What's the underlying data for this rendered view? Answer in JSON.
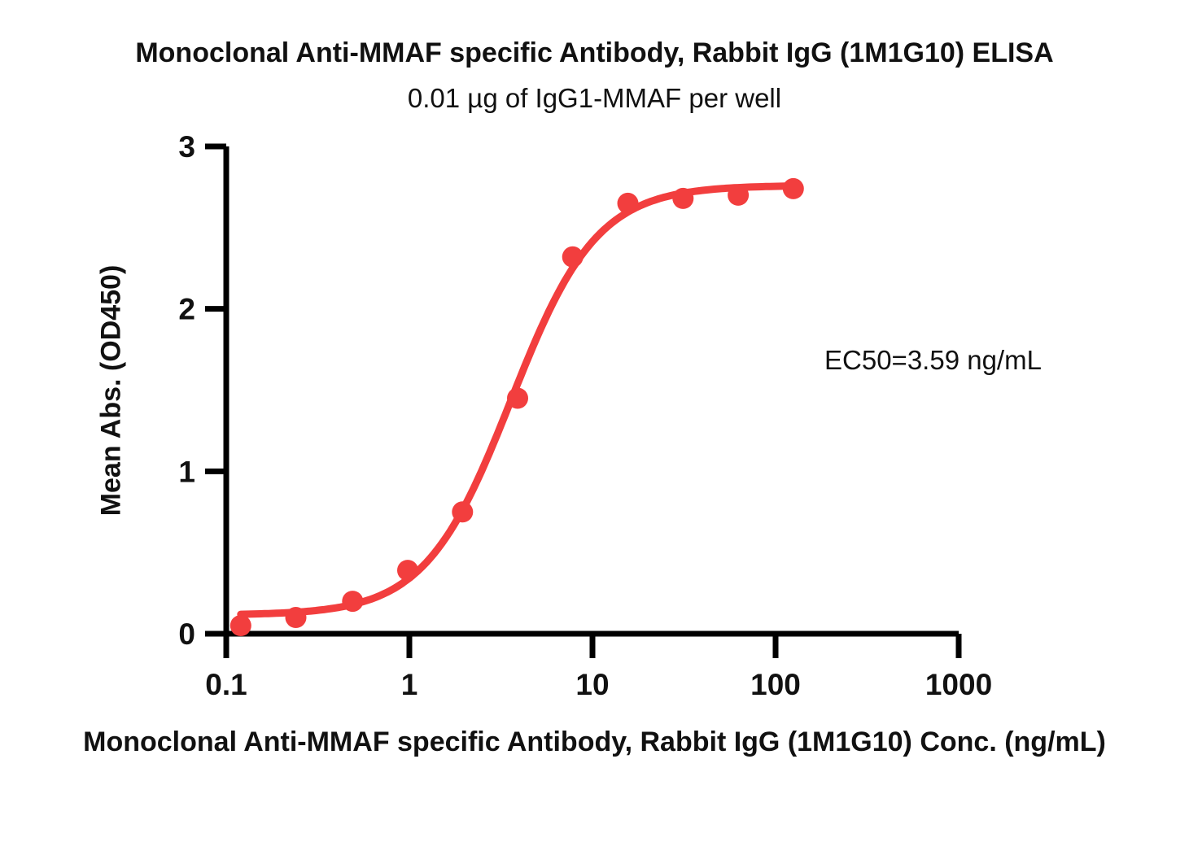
{
  "chart_data": {
    "type": "scatter",
    "fit": "4PL sigmoid dose-response",
    "title": "Monoclonal Anti-MMAF specific Antibody, Rabbit IgG (1M1G10) ELISA",
    "subtitle": "0.01 µg of IgG1-MMAF per well",
    "xlabel": "Monoclonal Anti-MMAF specific Antibody, Rabbit IgG (1M1G10) Conc. (ng/mL)",
    "ylabel": "Mean Abs. (OD450)",
    "annotation": "EC50=3.59 ng/mL",
    "ec50_ng_ml": 3.59,
    "x_scale": "log10",
    "xlim": [
      0.1,
      1000
    ],
    "ylim": [
      0,
      3
    ],
    "x_ticks": [
      0.1,
      1,
      10,
      100,
      1000
    ],
    "x_tick_labels": [
      "0.1",
      "1",
      "10",
      "100",
      "1000"
    ],
    "y_ticks": [
      0,
      1,
      2,
      3
    ],
    "y_tick_labels": [
      "0",
      "1",
      "2",
      "3"
    ],
    "x": [
      0.12,
      0.24,
      0.49,
      0.98,
      1.95,
      3.9,
      7.8,
      15.6,
      31.25,
      62.5,
      125
    ],
    "y": [
      0.05,
      0.1,
      0.2,
      0.39,
      0.75,
      1.45,
      2.32,
      2.65,
      2.68,
      2.7,
      2.74
    ],
    "curve_fit": {
      "bottom": 0.115,
      "top": 2.76,
      "ec50": 3.59,
      "hill": 1.85
    },
    "color": "#F23E3E",
    "axis_color": "#000000",
    "text_color": "#111111",
    "grid": "off",
    "legend": "none"
  }
}
